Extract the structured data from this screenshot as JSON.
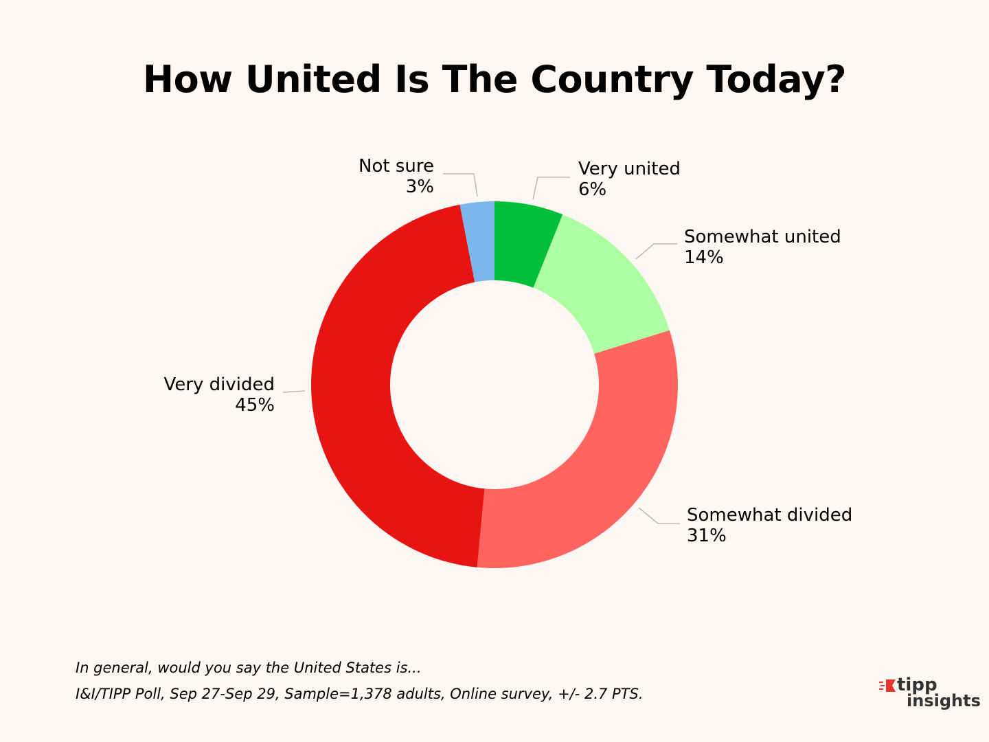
{
  "title": "How United Is The Country Today?",
  "chart_data": {
    "type": "pie",
    "variant": "donut",
    "title": "How United Is The Country Today?",
    "start_angle_deg": 0,
    "direction": "clockwise",
    "slices": [
      {
        "label": "Very united",
        "value_label": "6%",
        "value": 6,
        "color": "#00c03a"
      },
      {
        "label": "Somewhat united",
        "value_label": "14%",
        "value": 14,
        "color": "#aeffa3"
      },
      {
        "label": "Somewhat divided",
        "value_label": "31%",
        "value": 31,
        "color": "#ff6461"
      },
      {
        "label": "Very divided",
        "value_label": "45%",
        "value": 45,
        "color": "#e81414"
      },
      {
        "label": "Not sure",
        "value_label": "3%",
        "value": 3,
        "color": "#7ab6ea"
      }
    ],
    "legend": "none",
    "leader_line_color": "#bbbbbb"
  },
  "footnote": {
    "question": "In general, would you say the United States is...",
    "source": "I&I/TIPP Poll, Sep 27-Sep 29, Sample=1,378 adults, Online survey, +/- 2.7 PTS."
  },
  "logo": {
    "line1": "tipp",
    "line2": "insights",
    "accent_color": "#e8362e"
  }
}
